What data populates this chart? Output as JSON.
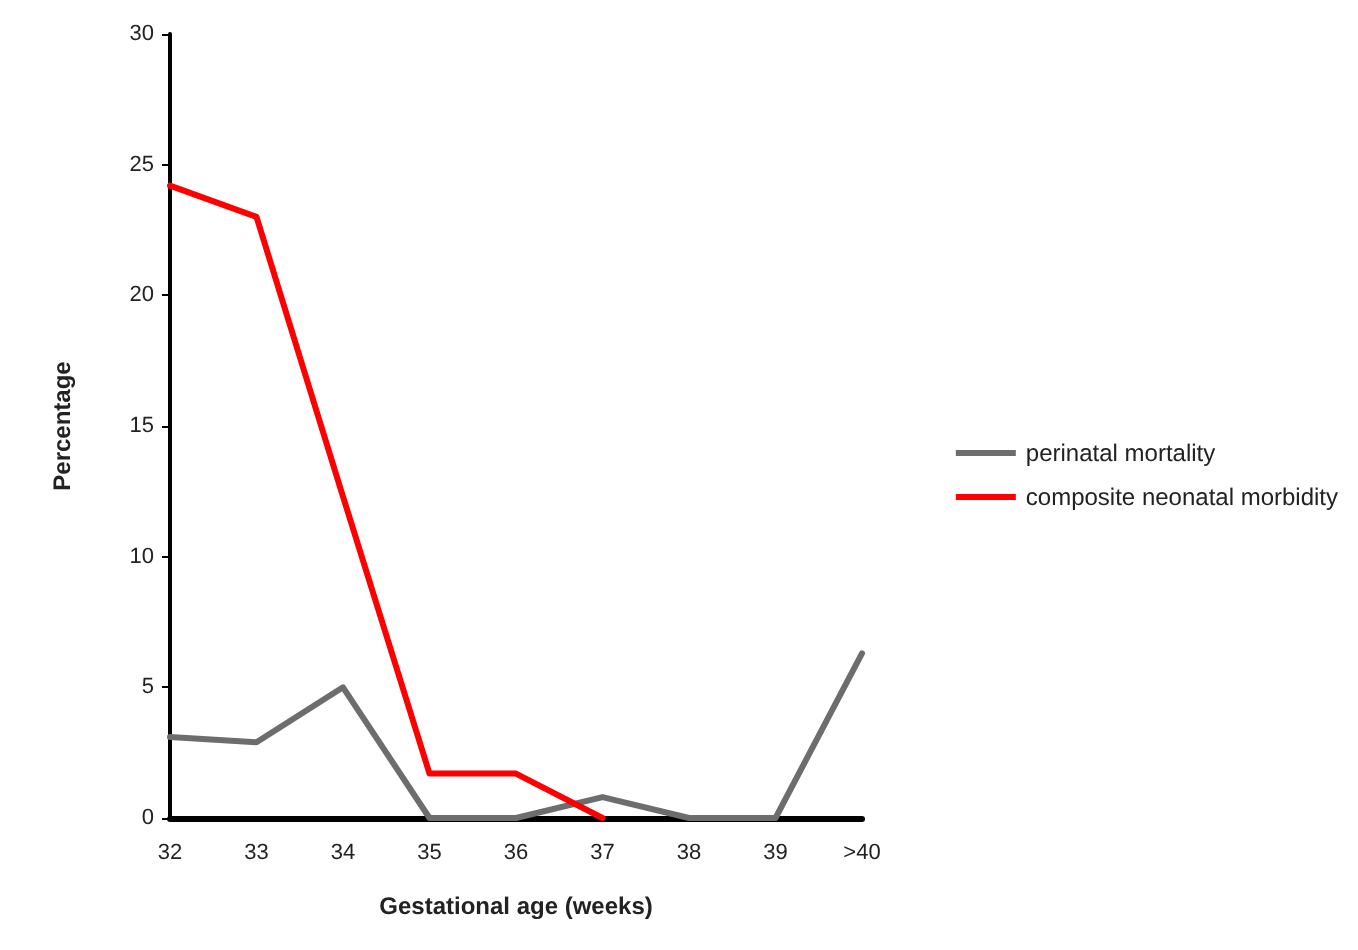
{
  "chart_data": {
    "type": "line",
    "xlabel": "Gestational age (weeks)",
    "ylabel": "Percentage",
    "categories": [
      "32",
      "33",
      "34",
      "35",
      "36",
      "37",
      "38",
      "39",
      ">40"
    ],
    "series": [
      {
        "name": "perinatal mortality",
        "color": "#6d6d6d",
        "values": [
          3.1,
          2.9,
          5.0,
          0,
          0,
          0.8,
          0,
          0,
          6.3
        ]
      },
      {
        "name": "composite neonatal morbidity",
        "color": "#ff0000",
        "values": [
          24.2,
          23.0,
          12.3,
          1.7,
          1.7,
          0,
          null,
          null,
          null
        ]
      }
    ],
    "ylim": [
      0,
      30
    ],
    "yticks": [
      0,
      5,
      10,
      15,
      20,
      25,
      30
    ],
    "grid": false,
    "legend": "right",
    "marker": "none",
    "line_style": "solid"
  }
}
